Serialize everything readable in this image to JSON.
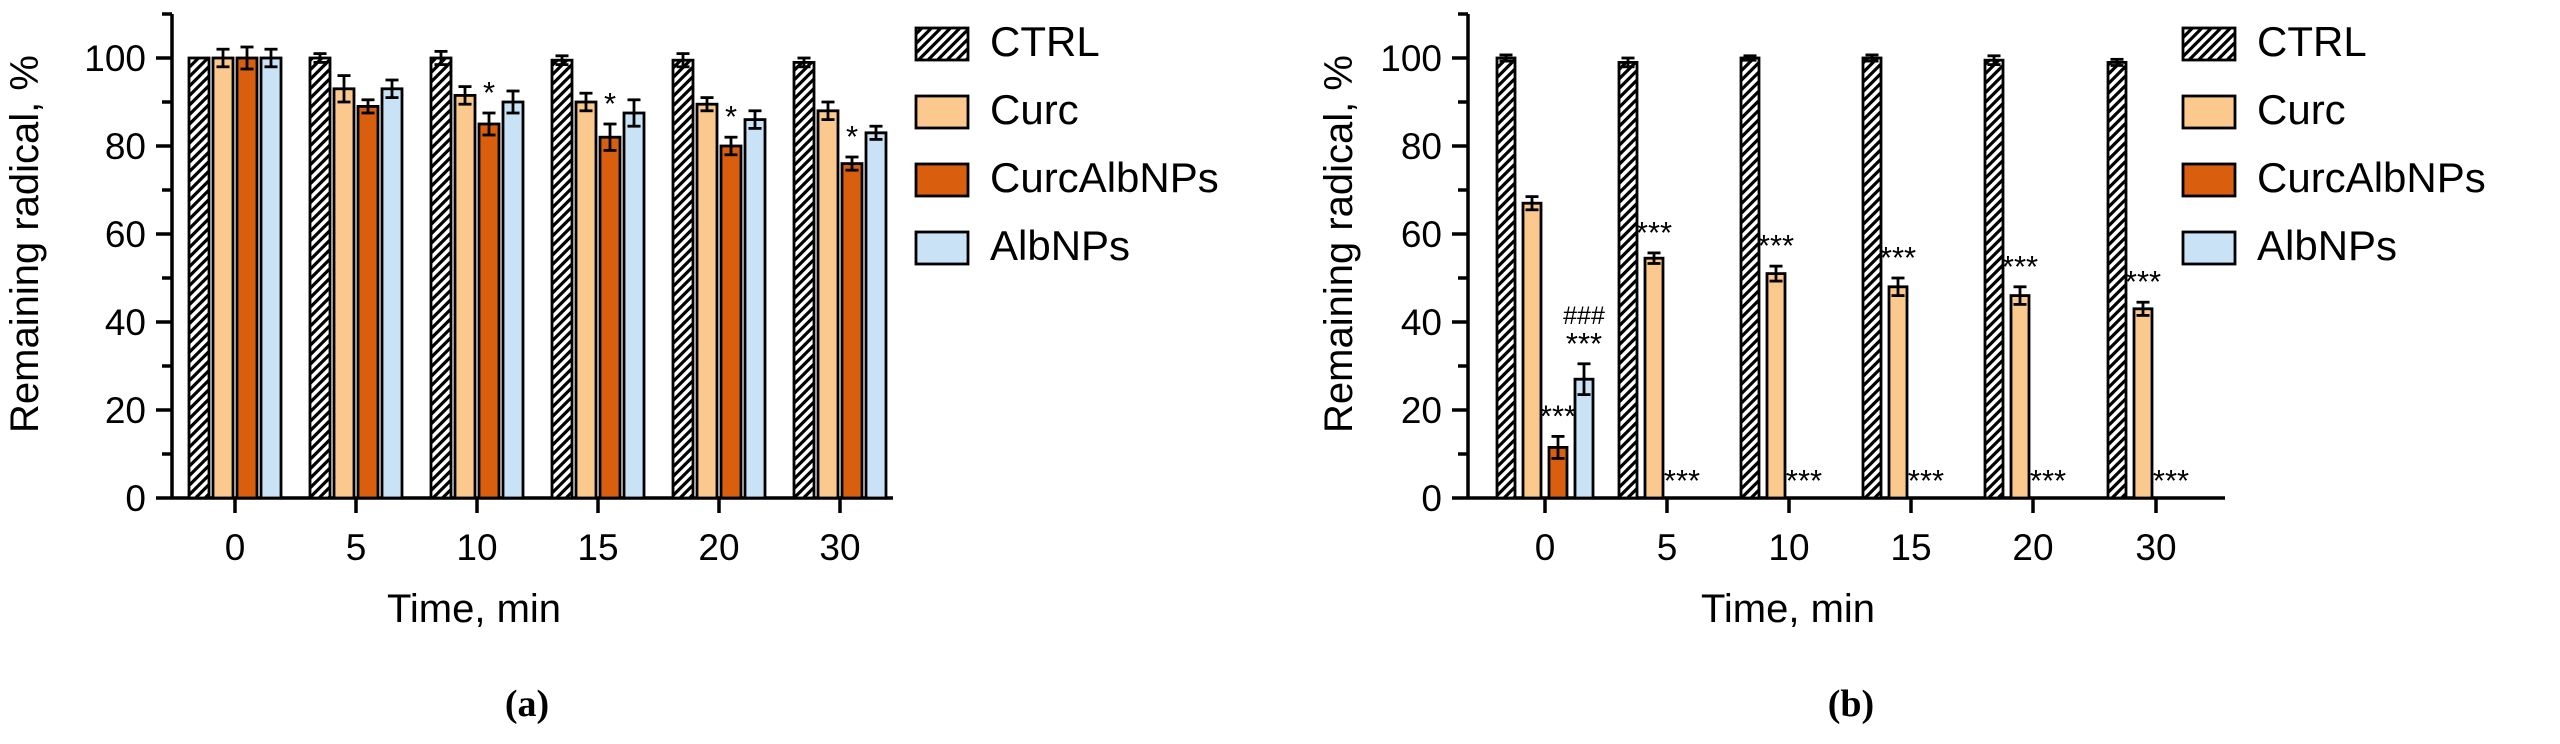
{
  "figure": {
    "panel_a_label": "(a)",
    "panel_b_label": "(b)"
  },
  "chart_data": [
    {
      "type": "bar",
      "panel": "(a)",
      "title": "",
      "xlabel": "Time, min",
      "ylabel": "Remaining radical, %",
      "categories": [
        "0",
        "5",
        "10",
        "15",
        "20",
        "30"
      ],
      "ylim": [
        0,
        110
      ],
      "yticks": [
        0,
        20,
        40,
        60,
        80,
        100
      ],
      "grid": false,
      "legend_position": "right",
      "series": [
        {
          "name": "CTRL",
          "pattern": "diagonal-hatch",
          "color": "#000000",
          "values": [
            100,
            100,
            100,
            99.5,
            99.5,
            99
          ],
          "errors": [
            0,
            1,
            1.5,
            1,
            1.5,
            1
          ],
          "sig": [
            "",
            "",
            "",
            "",
            "",
            ""
          ]
        },
        {
          "name": "Curc",
          "color": "#FBC98D",
          "values": [
            100,
            93,
            91.5,
            90,
            89.5,
            88
          ],
          "errors": [
            2,
            3,
            2,
            2,
            1.5,
            2
          ],
          "sig": [
            "",
            "",
            "",
            "",
            "",
            ""
          ]
        },
        {
          "name": "CurcAlbNPs",
          "color": "#D95F0E",
          "values": [
            100,
            89,
            85,
            82,
            80,
            76
          ],
          "errors": [
            2.5,
            1.5,
            2.5,
            3,
            2,
            1.5
          ],
          "sig": [
            "",
            "",
            "*",
            "*",
            "*",
            "*"
          ]
        },
        {
          "name": "AlbNPs",
          "color": "#C9E2F6",
          "values": [
            100,
            93,
            90,
            87.5,
            86,
            83
          ],
          "errors": [
            2,
            2,
            2.5,
            3,
            2,
            1.5
          ],
          "sig": [
            "",
            "",
            "",
            "",
            "",
            ""
          ]
        }
      ],
      "zero_sig": [
        "",
        "",
        "",
        "",
        "",
        ""
      ]
    },
    {
      "type": "bar",
      "panel": "(b)",
      "title": "",
      "xlabel": "Time, min",
      "ylabel": "Remaining radical, %",
      "categories": [
        "0",
        "5",
        "10",
        "15",
        "20",
        "30"
      ],
      "ylim": [
        0,
        110
      ],
      "yticks": [
        0,
        20,
        40,
        60,
        80,
        100
      ],
      "grid": false,
      "legend_position": "right",
      "series": [
        {
          "name": "CTRL",
          "pattern": "diagonal-hatch",
          "color": "#000000",
          "values": [
            100,
            99,
            100,
            100,
            99.5,
            99
          ],
          "errors": [
            0.7,
            1,
            0.5,
            0.7,
            1,
            0.7
          ],
          "sig": [
            "",
            "",
            "",
            "",
            "",
            ""
          ]
        },
        {
          "name": "Curc",
          "color": "#FBC98D",
          "values": [
            67,
            54.5,
            51,
            48,
            46,
            43
          ],
          "errors": [
            1.5,
            1.2,
            1.7,
            2,
            2,
            1.5
          ],
          "sig": [
            "",
            "***",
            "***",
            "***",
            "***",
            "***"
          ]
        },
        {
          "name": "CurcAlbNPs",
          "color": "#D95F0E",
          "values": [
            11.5,
            0,
            0,
            0,
            0,
            0
          ],
          "errors": [
            2.5,
            0,
            0,
            0,
            0,
            0
          ],
          "sig": [
            "***",
            "",
            "",
            "",
            "",
            ""
          ]
        },
        {
          "name": "AlbNPs",
          "color": "#C9E2F6",
          "values": [
            27,
            0,
            0,
            0,
            0,
            0
          ],
          "errors": [
            3.5,
            0,
            0,
            0,
            0,
            0
          ],
          "sig": [
            "###\n***",
            "",
            "",
            "",
            "",
            ""
          ]
        }
      ],
      "zero_sig": [
        "",
        "***",
        "***",
        "***",
        "***",
        "***"
      ]
    }
  ]
}
